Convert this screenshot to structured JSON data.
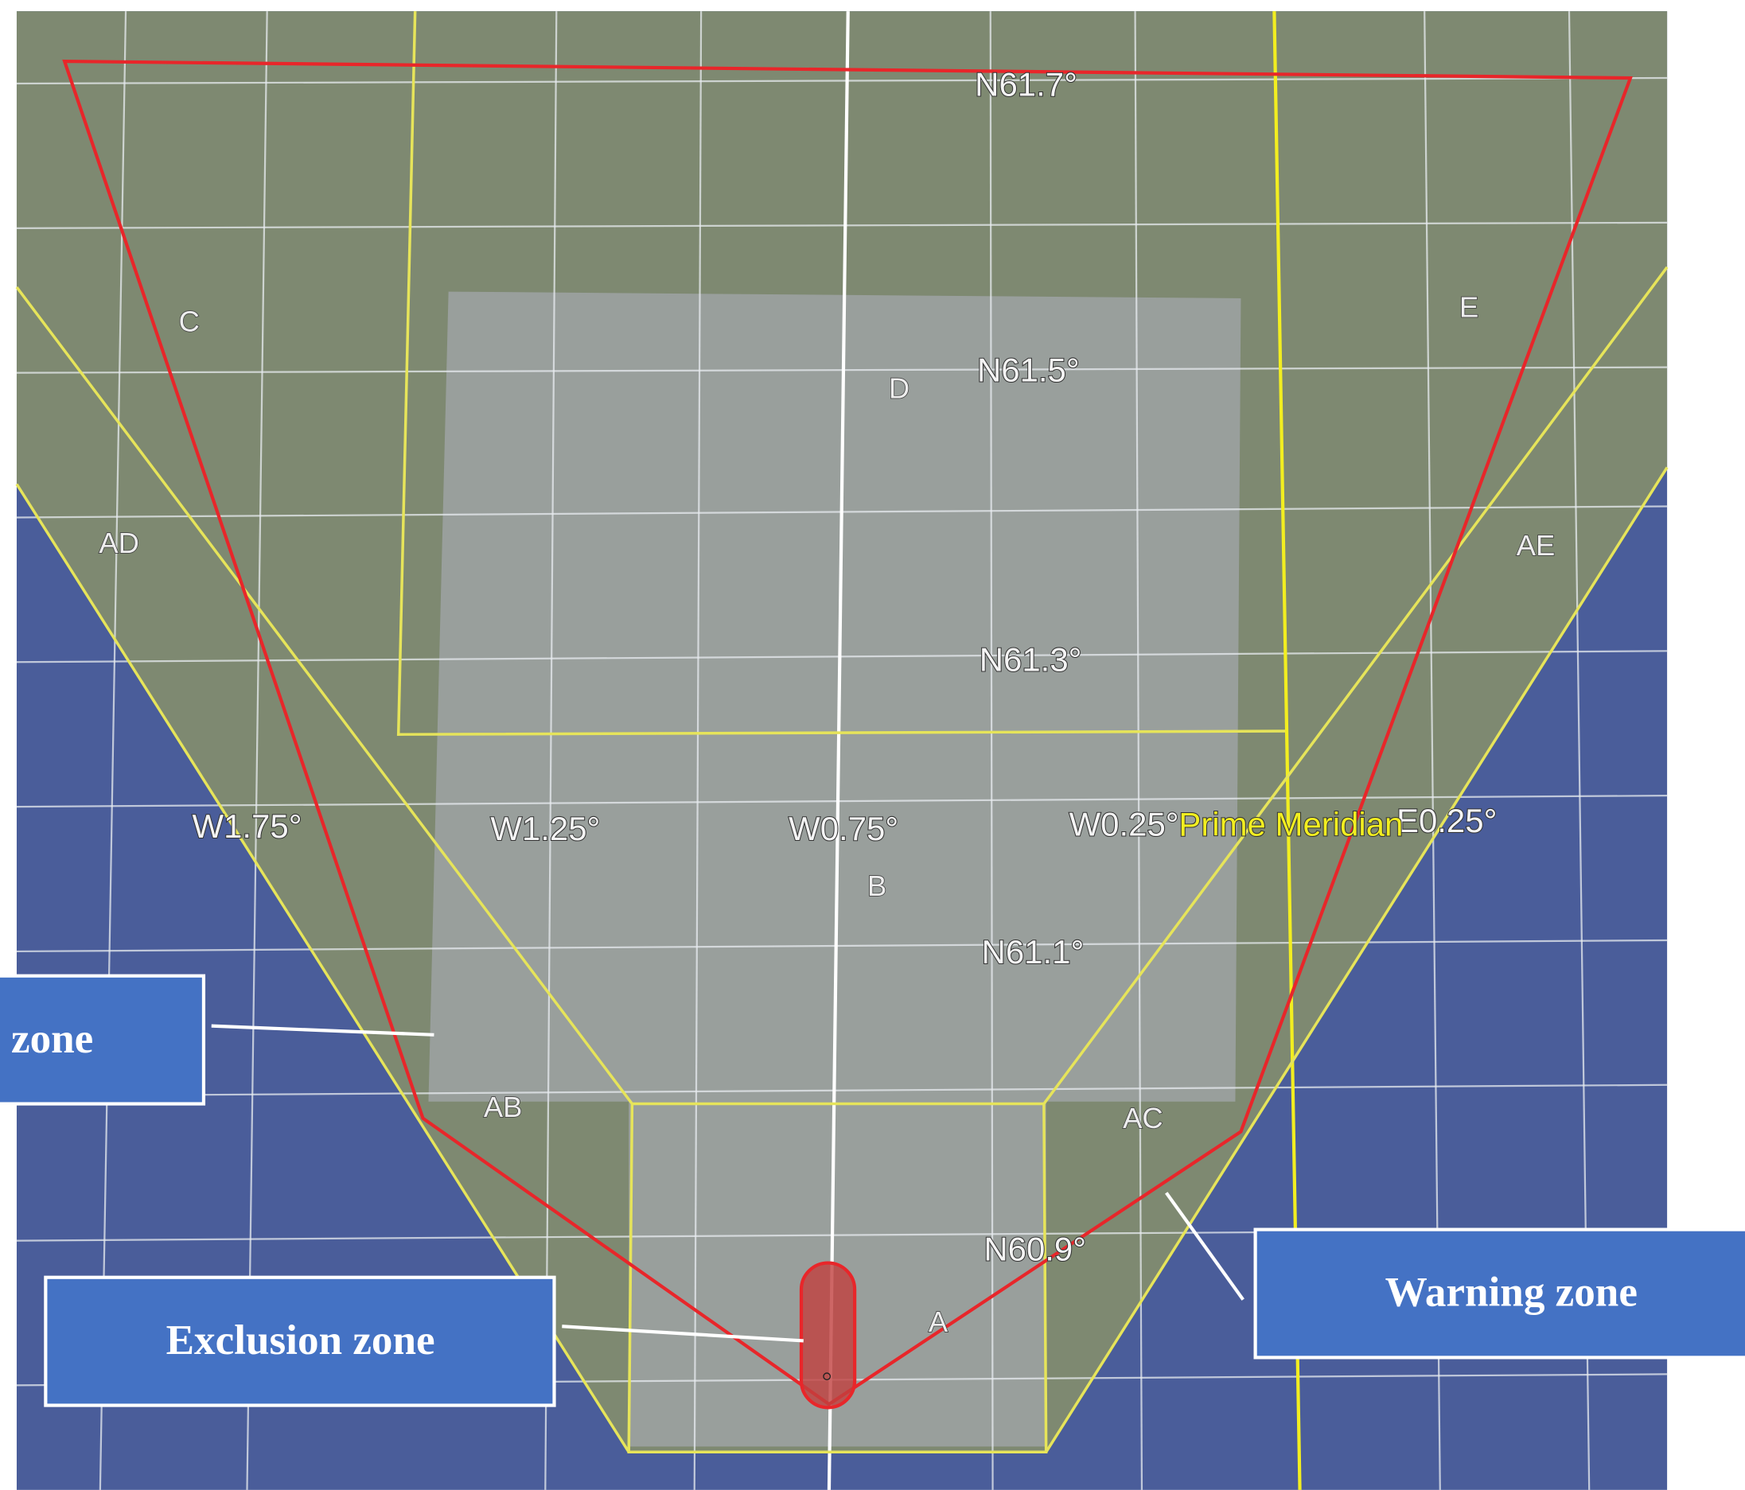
{
  "map": {
    "latitude_labels": [
      "N61.7°",
      "N61.5°",
      "N61.3°",
      "N61.1°",
      "N60.9°"
    ],
    "longitude_labels": [
      "W1.75°",
      "W1.25°",
      "W0.75°",
      "W0.25°",
      "E0.25°"
    ],
    "meridian_label": "Prime Meridian",
    "zone_labels": [
      "C",
      "D",
      "E",
      "AD",
      "AE",
      "B",
      "AB",
      "AC",
      "A"
    ]
  },
  "callouts": [
    "zone",
    "Exclusion zone",
    "Warning zone"
  ]
}
